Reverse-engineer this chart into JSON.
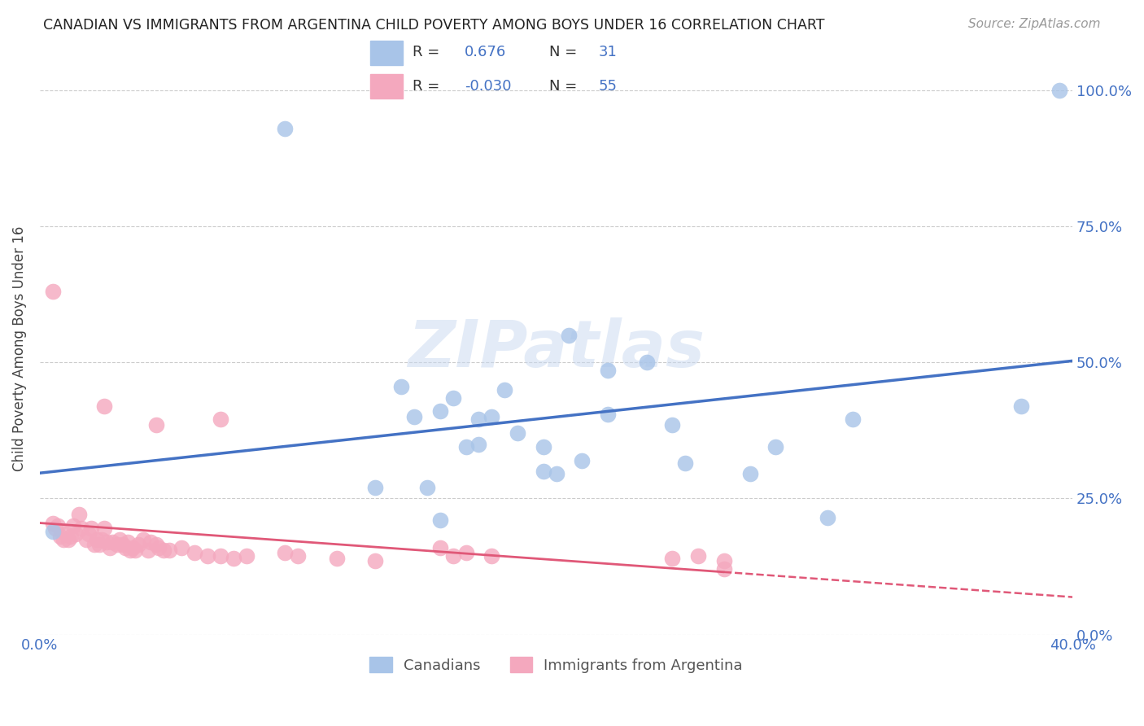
{
  "title": "CANADIAN VS IMMIGRANTS FROM ARGENTINA CHILD POVERTY AMONG BOYS UNDER 16 CORRELATION CHART",
  "source": "Source: ZipAtlas.com",
  "ylabel": "Child Poverty Among Boys Under 16",
  "xlim": [
    0.0,
    0.4
  ],
  "ylim": [
    0.0,
    1.05
  ],
  "canadian_R": 0.676,
  "canadian_N": 31,
  "argentina_R": -0.03,
  "argentina_N": 55,
  "canadian_color": "#a8c4e8",
  "argentina_color": "#f4a8be",
  "canadian_line_color": "#4472c4",
  "argentina_line_color": "#e05878",
  "watermark": "ZIPatlas",
  "label_color": "#4472c4",
  "canadians_x": [
    0.005,
    0.095,
    0.14,
    0.145,
    0.155,
    0.16,
    0.165,
    0.17,
    0.175,
    0.18,
    0.185,
    0.195,
    0.2,
    0.205,
    0.21,
    0.22,
    0.235,
    0.245,
    0.25,
    0.275,
    0.285,
    0.305,
    0.315,
    0.38,
    0.395,
    0.15,
    0.17,
    0.195,
    0.22,
    0.13,
    0.155
  ],
  "canadians_y": [
    0.19,
    0.93,
    0.455,
    0.4,
    0.41,
    0.435,
    0.345,
    0.395,
    0.4,
    0.45,
    0.37,
    0.345,
    0.295,
    0.55,
    0.32,
    0.485,
    0.5,
    0.385,
    0.315,
    0.295,
    0.345,
    0.215,
    0.395,
    0.42,
    1.0,
    0.27,
    0.35,
    0.3,
    0.405,
    0.27,
    0.21
  ],
  "argentina_x": [
    0.005,
    0.006,
    0.007,
    0.008,
    0.009,
    0.01,
    0.011,
    0.012,
    0.013,
    0.014,
    0.015,
    0.016,
    0.018,
    0.019,
    0.02,
    0.021,
    0.022,
    0.023,
    0.024,
    0.025,
    0.026,
    0.027,
    0.028,
    0.03,
    0.031,
    0.032,
    0.033,
    0.034,
    0.035,
    0.036,
    0.037,
    0.038,
    0.04,
    0.042,
    0.043,
    0.045,
    0.046,
    0.048,
    0.05,
    0.055,
    0.06,
    0.065,
    0.07,
    0.075,
    0.08,
    0.095,
    0.1,
    0.115,
    0.13,
    0.155,
    0.16,
    0.165,
    0.175,
    0.245,
    0.265
  ],
  "argentina_y": [
    0.205,
    0.195,
    0.2,
    0.18,
    0.175,
    0.185,
    0.175,
    0.18,
    0.2,
    0.185,
    0.22,
    0.195,
    0.175,
    0.185,
    0.195,
    0.165,
    0.175,
    0.165,
    0.175,
    0.195,
    0.17,
    0.16,
    0.17,
    0.165,
    0.175,
    0.165,
    0.16,
    0.17,
    0.155,
    0.16,
    0.155,
    0.165,
    0.175,
    0.155,
    0.17,
    0.165,
    0.16,
    0.155,
    0.155,
    0.16,
    0.15,
    0.145,
    0.145,
    0.14,
    0.145,
    0.15,
    0.145,
    0.14,
    0.135,
    0.16,
    0.145,
    0.15,
    0.145,
    0.14,
    0.135
  ],
  "argentina_outliers_x": [
    0.005,
    0.025,
    0.045,
    0.07,
    0.255,
    0.265
  ],
  "argentina_outliers_y": [
    0.63,
    0.42,
    0.385,
    0.395,
    0.145,
    0.12
  ],
  "background_color": "#ffffff",
  "grid_color": "#cccccc"
}
